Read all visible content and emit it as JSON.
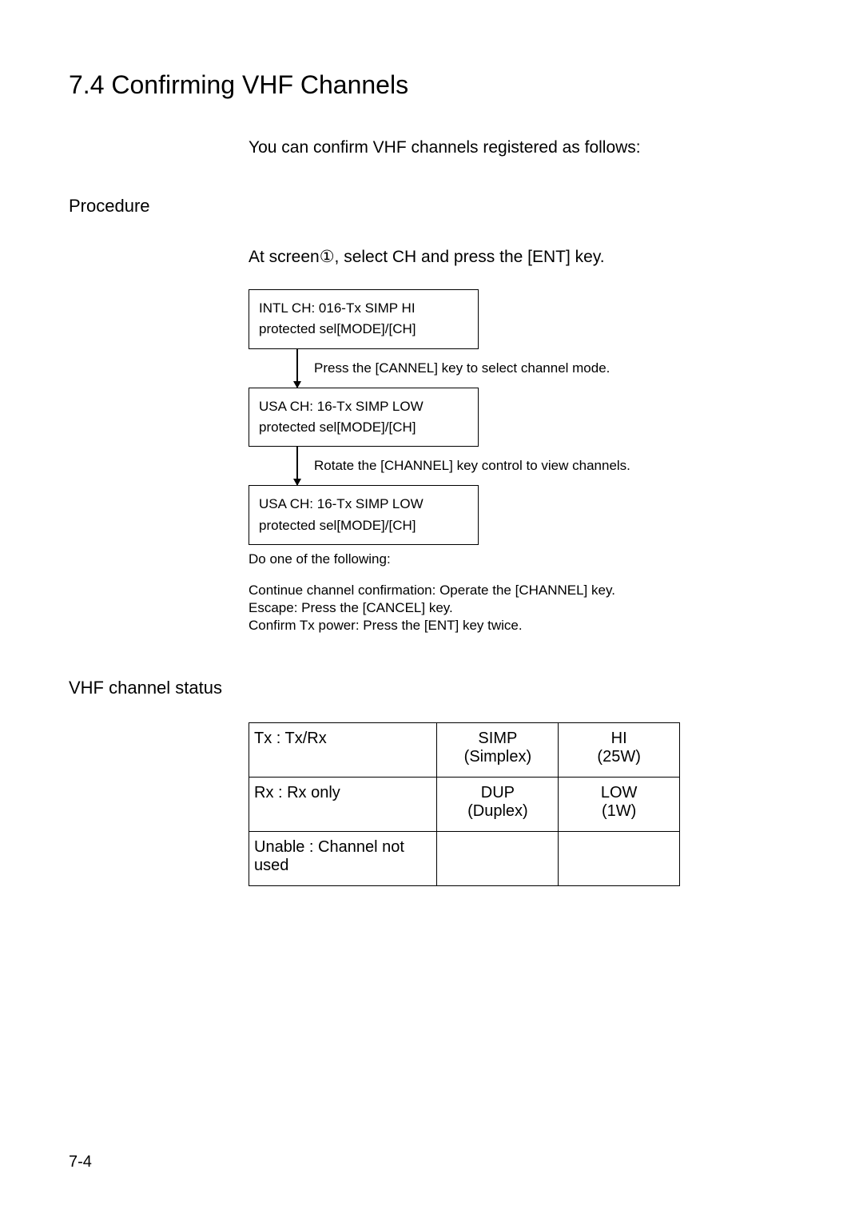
{
  "title": "7.4 Confirming VHF Channels",
  "intro": "You can confirm VHF channels registered as follows:",
  "procedure_label": "Procedure",
  "procedure_step": "At screen①, select  CH  and press the [ENT] key.",
  "flow": {
    "box1": {
      "line1": "INTL CH: 016-Tx SIMP HI",
      "line2": "protected sel[MODE]/[CH]"
    },
    "conn1": "Press the [CANNEL] key to select channel mode.",
    "box2": {
      "line1": "USA CH: 16-Tx SIMP LOW",
      "line2": "protected sel[MODE]/[CH]"
    },
    "conn2": "Rotate the [CHANNEL] key control to view channels.",
    "box3": {
      "line1": "USA CH: 16-Tx SIMP LOW",
      "line2": "protected sel[MODE]/[CH]"
    }
  },
  "followup": {
    "lead": "Do one of the following:",
    "line1": "Continue channel confirmation: Operate the [CHANNEL] key.",
    "line2": "Escape: Press the [CANCEL] key.",
    "line3": "Confirm Tx power: Press the [ENT] key twice."
  },
  "status_label": "VHF channel  status",
  "status_table": {
    "rows": [
      {
        "c1": "Tx : Tx/Rx",
        "c2a": "SIMP",
        "c2b": "(Simplex)",
        "c3a": "HI",
        "c3b": "(25W)"
      },
      {
        "c1": "Rx : Rx only",
        "c2a": "DUP",
        "c2b": "(Duplex)",
        "c3a": "LOW",
        "c3b": "(1W)"
      },
      {
        "c1": "Unable : Channel not used",
        "c2a": "",
        "c2b": "",
        "c3a": "",
        "c3b": ""
      }
    ]
  },
  "page_num": "7-4"
}
